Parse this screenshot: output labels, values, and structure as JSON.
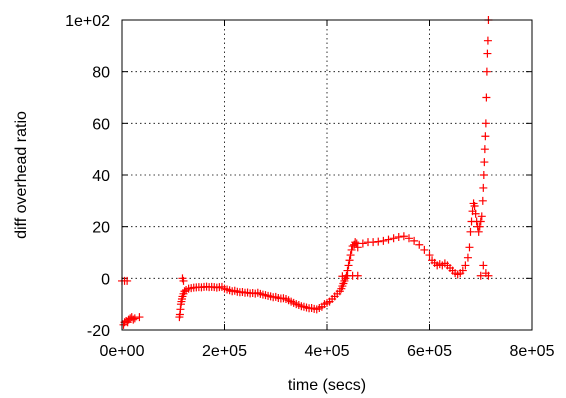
{
  "chart_data": {
    "type": "scatter",
    "title": "",
    "xlabel": "time (secs)",
    "ylabel": "diff overhead ratio",
    "xlim": [
      0,
      800000
    ],
    "ylim": [
      -20,
      100
    ],
    "grid": true,
    "marker": "plus",
    "x_ticks": [
      {
        "value": 0,
        "label": "0e+00"
      },
      {
        "value": 200000,
        "label": "2e+05"
      },
      {
        "value": 400000,
        "label": "4e+05"
      },
      {
        "value": 600000,
        "label": "6e+05"
      },
      {
        "value": 800000,
        "label": "8e+05"
      }
    ],
    "y_ticks": [
      {
        "value": -20,
        "label": "-20"
      },
      {
        "value": 0,
        "label": "0"
      },
      {
        "value": 20,
        "label": "20"
      },
      {
        "value": 40,
        "label": "40"
      },
      {
        "value": 60,
        "label": "60"
      },
      {
        "value": 80,
        "label": "80"
      },
      {
        "value": 100,
        "label": "1e+02"
      }
    ],
    "series": [
      {
        "color": "#ff0000",
        "points": [
          [
            0,
            -1
          ],
          [
            5000,
            -1
          ],
          [
            10000,
            -1
          ],
          [
            3000,
            -18
          ],
          [
            5000,
            -17
          ],
          [
            8000,
            -16.5
          ],
          [
            11000,
            -17
          ],
          [
            13000,
            -16
          ],
          [
            16000,
            -15.5
          ],
          [
            19000,
            -15
          ],
          [
            22000,
            -16
          ],
          [
            25000,
            -15.5
          ],
          [
            34000,
            -15
          ],
          [
            112000,
            -15
          ],
          [
            113000,
            -14
          ],
          [
            114000,
            -12
          ],
          [
            115000,
            -10
          ],
          [
            116000,
            -9
          ],
          [
            117000,
            -8
          ],
          [
            118000,
            -7
          ],
          [
            120000,
            -6
          ],
          [
            122000,
            -5
          ],
          [
            118000,
            0
          ],
          [
            120000,
            -1
          ],
          [
            125000,
            -4.5
          ],
          [
            130000,
            -4
          ],
          [
            135000,
            -3.8
          ],
          [
            140000,
            -3.6
          ],
          [
            145000,
            -3.5
          ],
          [
            150000,
            -3.4
          ],
          [
            155000,
            -3.5
          ],
          [
            160000,
            -3.3
          ],
          [
            165000,
            -3.2
          ],
          [
            170000,
            -3.4
          ],
          [
            175000,
            -3.3
          ],
          [
            180000,
            -3.4
          ],
          [
            185000,
            -3.6
          ],
          [
            190000,
            -3.4
          ],
          [
            195000,
            -3.3
          ],
          [
            200000,
            -4
          ],
          [
            205000,
            -4.3
          ],
          [
            210000,
            -4.6
          ],
          [
            215000,
            -5
          ],
          [
            220000,
            -4.8
          ],
          [
            225000,
            -5.2
          ],
          [
            230000,
            -5.4
          ],
          [
            235000,
            -5.3
          ],
          [
            240000,
            -5.6
          ],
          [
            245000,
            -5.5
          ],
          [
            250000,
            -5.8
          ],
          [
            255000,
            -5.7
          ],
          [
            260000,
            -5.9
          ],
          [
            265000,
            -5.6
          ],
          [
            270000,
            -6
          ],
          [
            275000,
            -6.3
          ],
          [
            280000,
            -6.5
          ],
          [
            285000,
            -6.8
          ],
          [
            290000,
            -7
          ],
          [
            295000,
            -7.3
          ],
          [
            300000,
            -7.2
          ],
          [
            305000,
            -7.6
          ],
          [
            310000,
            -7.8
          ],
          [
            315000,
            -7.7
          ],
          [
            320000,
            -8
          ],
          [
            325000,
            -8.5
          ],
          [
            330000,
            -9
          ],
          [
            335000,
            -9.5
          ],
          [
            340000,
            -10
          ],
          [
            345000,
            -10.3
          ],
          [
            350000,
            -10.8
          ],
          [
            355000,
            -11
          ],
          [
            360000,
            -11.3
          ],
          [
            365000,
            -11.6
          ],
          [
            370000,
            -11.5
          ],
          [
            375000,
            -11.8
          ],
          [
            380000,
            -12
          ],
          [
            385000,
            -11.5
          ],
          [
            390000,
            -11
          ],
          [
            395000,
            -10
          ],
          [
            400000,
            -9.5
          ],
          [
            405000,
            -9
          ],
          [
            410000,
            -8
          ],
          [
            415000,
            -7
          ],
          [
            420000,
            -6
          ],
          [
            425000,
            -5
          ],
          [
            428000,
            -4
          ],
          [
            430000,
            -3
          ],
          [
            432000,
            -2
          ],
          [
            434000,
            -1
          ],
          [
            436000,
            0
          ],
          [
            438000,
            1
          ],
          [
            440000,
            3
          ],
          [
            442000,
            5
          ],
          [
            444000,
            7
          ],
          [
            446000,
            9
          ],
          [
            448000,
            11
          ],
          [
            450000,
            12.5
          ],
          [
            453000,
            13
          ],
          [
            455000,
            14
          ],
          [
            458000,
            13.5
          ],
          [
            460000,
            12
          ],
          [
            430000,
            0.8
          ],
          [
            440000,
            1
          ],
          [
            450000,
            1
          ],
          [
            460000,
            1
          ],
          [
            470000,
            13.5
          ],
          [
            480000,
            14
          ],
          [
            490000,
            14
          ],
          [
            500000,
            14.2
          ],
          [
            510000,
            14.5
          ],
          [
            520000,
            15
          ],
          [
            530000,
            15.5
          ],
          [
            540000,
            16
          ],
          [
            550000,
            16.3
          ],
          [
            560000,
            15.5
          ],
          [
            570000,
            14.5
          ],
          [
            580000,
            13
          ],
          [
            590000,
            11
          ],
          [
            600000,
            9
          ],
          [
            605000,
            7
          ],
          [
            610000,
            6
          ],
          [
            615000,
            5
          ],
          [
            620000,
            5.5
          ],
          [
            625000,
            5
          ],
          [
            630000,
            5.8
          ],
          [
            635000,
            5
          ],
          [
            640000,
            4
          ],
          [
            645000,
            3
          ],
          [
            650000,
            2
          ],
          [
            655000,
            1.5
          ],
          [
            660000,
            2
          ],
          [
            665000,
            3
          ],
          [
            670000,
            5
          ],
          [
            675000,
            8
          ],
          [
            678000,
            12
          ],
          [
            680000,
            18
          ],
          [
            682000,
            22
          ],
          [
            684000,
            26
          ],
          [
            686000,
            29
          ],
          [
            688000,
            28
          ],
          [
            690000,
            25
          ],
          [
            692000,
            22
          ],
          [
            694000,
            20
          ],
          [
            696000,
            18
          ],
          [
            698000,
            20
          ],
          [
            700000,
            22
          ],
          [
            702000,
            24
          ],
          [
            704000,
            30
          ],
          [
            705000,
            35
          ],
          [
            706000,
            40
          ],
          [
            707000,
            45
          ],
          [
            708000,
            50
          ],
          [
            709000,
            55
          ],
          [
            710000,
            60
          ],
          [
            711000,
            70
          ],
          [
            712000,
            80
          ],
          [
            713000,
            87
          ],
          [
            714000,
            92
          ],
          [
            715000,
            100
          ],
          [
            700000,
            1
          ],
          [
            705000,
            5
          ],
          [
            710000,
            2
          ],
          [
            715000,
            1
          ]
        ]
      }
    ]
  }
}
